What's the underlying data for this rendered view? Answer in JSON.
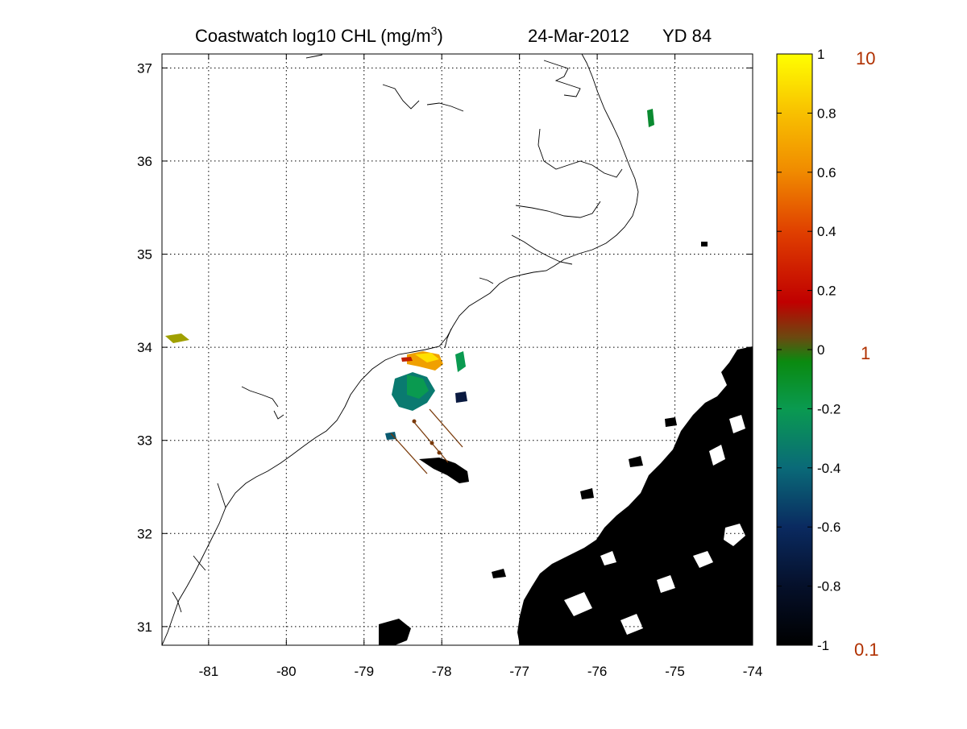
{
  "title": {
    "main": "Coastwatch  log10  CHL (mg/m",
    "superscript": "3",
    "close": ")",
    "date": "24-Mar-2012",
    "yearday": "YD 84"
  },
  "map": {
    "lon_range": [
      -81.6,
      -74.0
    ],
    "lat_range": [
      30.8,
      37.15
    ],
    "x_ticks": [
      "-81",
      "-80",
      "-79",
      "-78",
      "-77",
      "-76",
      "-75",
      "-74"
    ],
    "y_ticks": [
      "31",
      "32",
      "33",
      "34",
      "35",
      "36",
      "37"
    ],
    "grid": "dotted"
  },
  "colorbar": {
    "range": [
      -1,
      1
    ],
    "tick_labels": [
      "1",
      "0.8",
      "0.6",
      "0.4",
      "0.2",
      "0",
      "-0.2",
      "-0.4",
      "-0.6",
      "-0.8",
      "-1"
    ],
    "linear_labels": [
      "10",
      "1",
      "0.1"
    ],
    "linear_label_color": "#b03000",
    "colors": [
      "#000000",
      "#0a1840",
      "#0a3c78",
      "#0a8a70",
      "#0a8a20",
      "#6a5a10",
      "#c00000",
      "#e06000",
      "#f0a000",
      "#ffff00"
    ]
  },
  "colors": {
    "land_mask": "#000000",
    "coastline": "#000000",
    "glider_track": "#7a3a0a"
  }
}
